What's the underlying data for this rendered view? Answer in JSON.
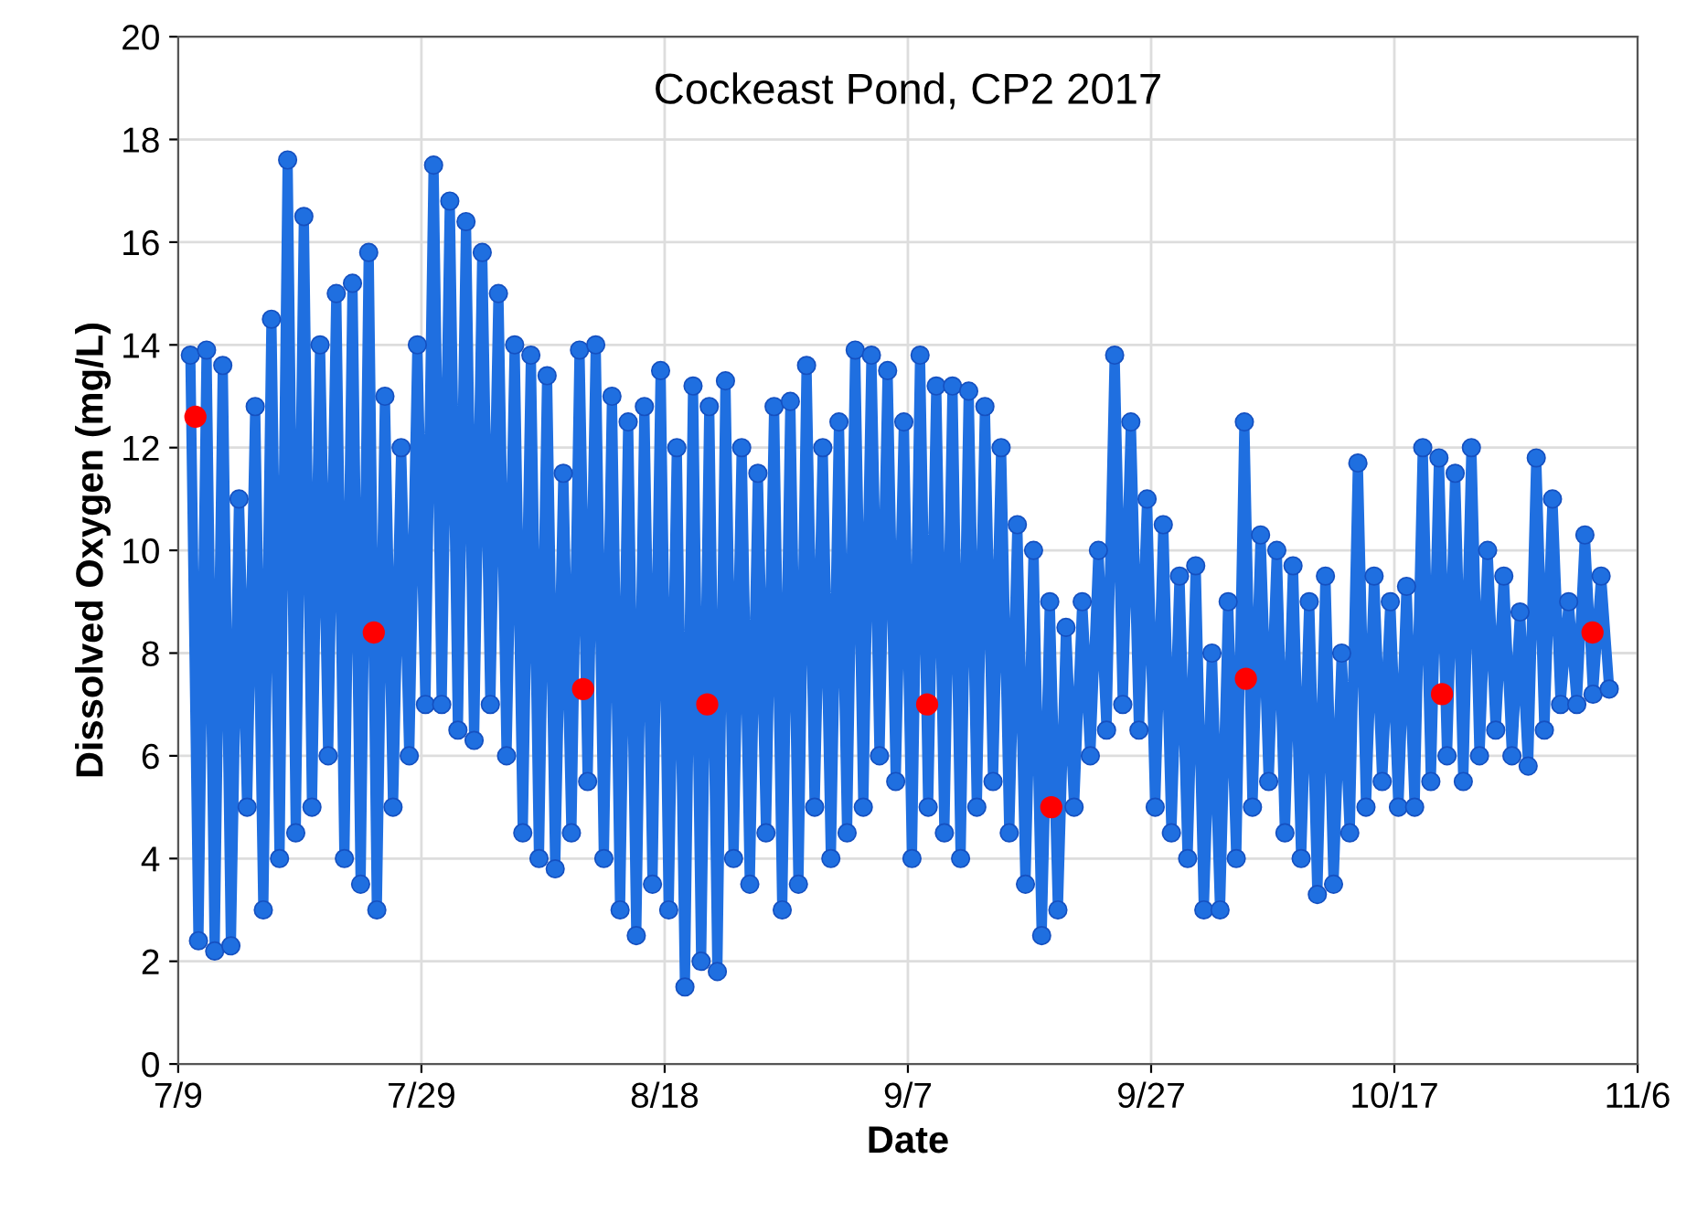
{
  "chart_data": {
    "type": "line",
    "title": "Cockeast Pond, CP2 2017",
    "xlabel": "Date",
    "ylabel": "Dissolved Oxygen (mg/L)",
    "xlim": [
      "2017-07-09",
      "2017-11-06"
    ],
    "xticks": [
      {
        "value": "2017-07-09",
        "label": "7/9"
      },
      {
        "value": "2017-07-29",
        "label": "7/29"
      },
      {
        "value": "2017-08-18",
        "label": "8/18"
      },
      {
        "value": "2017-09-07",
        "label": "9/7"
      },
      {
        "value": "2017-09-27",
        "label": "9/27"
      },
      {
        "value": "2017-10-17",
        "label": "10/17"
      },
      {
        "value": "2017-11-06",
        "label": "11/6"
      }
    ],
    "ylim": [
      0,
      20
    ],
    "yticks": [
      0,
      2,
      4,
      6,
      8,
      10,
      12,
      14,
      16,
      18,
      20
    ],
    "grid": true,
    "legend": false,
    "series": [
      {
        "type": "line",
        "marker": "circle",
        "color": "#1f6fe0",
        "x": [
          "2017-07-10T00:00",
          "2017-07-10T16:00",
          "2017-07-11T08:00",
          "2017-07-12T00:00",
          "2017-07-12T16:00",
          "2017-07-13T08:00",
          "2017-07-14T00:00",
          "2017-07-14T16:00",
          "2017-07-15T08:00",
          "2017-07-16T00:00",
          "2017-07-16T16:00",
          "2017-07-17T08:00",
          "2017-07-18T00:00",
          "2017-07-18T16:00",
          "2017-07-19T08:00",
          "2017-07-20T00:00",
          "2017-07-20T16:00",
          "2017-07-21T08:00",
          "2017-07-22T00:00",
          "2017-07-22T16:00",
          "2017-07-23T08:00",
          "2017-07-24T00:00",
          "2017-07-24T16:00",
          "2017-07-25T08:00",
          "2017-07-26T00:00",
          "2017-07-26T16:00",
          "2017-07-27T08:00",
          "2017-07-28T00:00",
          "2017-07-28T16:00",
          "2017-07-29T08:00",
          "2017-07-30T00:00",
          "2017-07-30T16:00",
          "2017-07-31T08:00",
          "2017-08-01T00:00",
          "2017-08-01T16:00",
          "2017-08-02T08:00",
          "2017-08-03T00:00",
          "2017-08-03T16:00",
          "2017-08-04T08:00",
          "2017-08-05T00:00",
          "2017-08-05T16:00",
          "2017-08-06T08:00",
          "2017-08-07T00:00",
          "2017-08-07T16:00",
          "2017-08-08T08:00",
          "2017-08-09T00:00",
          "2017-08-09T16:00",
          "2017-08-10T08:00",
          "2017-08-11T00:00",
          "2017-08-11T16:00",
          "2017-08-12T08:00",
          "2017-08-13T00:00",
          "2017-08-13T16:00",
          "2017-08-14T08:00",
          "2017-08-15T00:00",
          "2017-08-15T16:00",
          "2017-08-16T08:00",
          "2017-08-17T00:00",
          "2017-08-17T16:00",
          "2017-08-18T08:00",
          "2017-08-19T00:00",
          "2017-08-19T16:00",
          "2017-08-20T08:00",
          "2017-08-21T00:00",
          "2017-08-21T16:00",
          "2017-08-22T08:00",
          "2017-08-23T00:00",
          "2017-08-23T16:00",
          "2017-08-24T08:00",
          "2017-08-25T00:00",
          "2017-08-25T16:00",
          "2017-08-26T08:00",
          "2017-08-27T00:00",
          "2017-08-27T16:00",
          "2017-08-28T08:00",
          "2017-08-29T00:00",
          "2017-08-29T16:00",
          "2017-08-30T08:00",
          "2017-08-31T00:00",
          "2017-08-31T16:00",
          "2017-09-01T08:00",
          "2017-09-02T00:00",
          "2017-09-02T16:00",
          "2017-09-03T08:00",
          "2017-09-04T00:00",
          "2017-09-04T16:00",
          "2017-09-05T08:00",
          "2017-09-06T00:00",
          "2017-09-06T16:00",
          "2017-09-07T08:00",
          "2017-09-08T00:00",
          "2017-09-08T16:00",
          "2017-09-09T08:00",
          "2017-09-10T00:00",
          "2017-09-10T16:00",
          "2017-09-11T08:00",
          "2017-09-12T00:00",
          "2017-09-12T16:00",
          "2017-09-13T08:00",
          "2017-09-14T00:00",
          "2017-09-14T16:00",
          "2017-09-15T08:00",
          "2017-09-16T00:00",
          "2017-09-16T16:00",
          "2017-09-17T08:00",
          "2017-09-18T00:00",
          "2017-09-18T16:00",
          "2017-09-19T08:00",
          "2017-09-20T00:00",
          "2017-09-20T16:00",
          "2017-09-21T08:00",
          "2017-09-22T00:00",
          "2017-09-22T16:00",
          "2017-09-23T08:00",
          "2017-09-24T00:00",
          "2017-09-24T16:00",
          "2017-09-25T08:00",
          "2017-09-26T00:00",
          "2017-09-26T16:00",
          "2017-09-27T08:00",
          "2017-09-28T00:00",
          "2017-09-28T16:00",
          "2017-09-29T08:00",
          "2017-09-30T00:00",
          "2017-09-30T16:00",
          "2017-10-01T08:00",
          "2017-10-02T00:00",
          "2017-10-02T16:00",
          "2017-10-03T08:00",
          "2017-10-04T00:00",
          "2017-10-04T16:00",
          "2017-10-05T08:00",
          "2017-10-06T00:00",
          "2017-10-06T16:00",
          "2017-10-07T08:00",
          "2017-10-08T00:00",
          "2017-10-08T16:00",
          "2017-10-09T08:00",
          "2017-10-10T00:00",
          "2017-10-10T16:00",
          "2017-10-11T08:00",
          "2017-10-12T00:00",
          "2017-10-12T16:00",
          "2017-10-13T08:00",
          "2017-10-14T00:00",
          "2017-10-14T16:00",
          "2017-10-15T08:00",
          "2017-10-16T00:00",
          "2017-10-16T16:00",
          "2017-10-17T08:00",
          "2017-10-18T00:00",
          "2017-10-18T16:00",
          "2017-10-19T08:00",
          "2017-10-20T00:00",
          "2017-10-20T16:00",
          "2017-10-21T08:00",
          "2017-10-22T00:00",
          "2017-10-22T16:00",
          "2017-10-23T08:00",
          "2017-10-24T00:00",
          "2017-10-24T16:00",
          "2017-10-25T08:00",
          "2017-10-26T00:00",
          "2017-10-26T16:00",
          "2017-10-27T08:00",
          "2017-10-28T00:00",
          "2017-10-28T16:00",
          "2017-10-29T08:00",
          "2017-10-30T00:00",
          "2017-10-30T16:00",
          "2017-10-31T08:00",
          "2017-11-01T00:00",
          "2017-11-01T16:00",
          "2017-11-02T08:00",
          "2017-11-03T00:00",
          "2017-11-03T16:00"
        ],
        "values": [
          13.8,
          2.4,
          13.9,
          2.2,
          13.6,
          2.3,
          11,
          5,
          12.8,
          3,
          14.5,
          4,
          17.6,
          4.5,
          16.5,
          5,
          14,
          6,
          15,
          4,
          15.2,
          3.5,
          15.8,
          3,
          13,
          5,
          12,
          6,
          14,
          7,
          17.5,
          7,
          16.8,
          6.5,
          16.4,
          6.3,
          15.8,
          7,
          15,
          6,
          14,
          4.5,
          13.8,
          4,
          13.4,
          3.8,
          11.5,
          4.5,
          13.9,
          5.5,
          14,
          4,
          13,
          3,
          12.5,
          2.5,
          12.8,
          3.5,
          13.5,
          3,
          12,
          1.5,
          13.2,
          2,
          12.8,
          1.8,
          13.3,
          4,
          12,
          3.5,
          11.5,
          4.5,
          12.8,
          3,
          12.9,
          3.5,
          13.6,
          5,
          12,
          4,
          12.5,
          4.5,
          13.9,
          5,
          13.8,
          6,
          13.5,
          5.5,
          12.5,
          4,
          13.8,
          5,
          13.2,
          4.5,
          13.2,
          4,
          13.1,
          5,
          12.8,
          5.5,
          12,
          4.5,
          10.5,
          3.5,
          10,
          2.5,
          9,
          3,
          8.5,
          5,
          9,
          6,
          10,
          6.5,
          13.8,
          7,
          12.5,
          6.5,
          11,
          5,
          10.5,
          4.5,
          9.5,
          4,
          9.7,
          3,
          8,
          3,
          9,
          4,
          12.5,
          5,
          10.3,
          5.5,
          10,
          4.5,
          9.7,
          4,
          9,
          3.3,
          9.5,
          3.5,
          8,
          4.5,
          11.7,
          5,
          9.5,
          5.5,
          9,
          5,
          9.3,
          5,
          12,
          5.5,
          11.8,
          6,
          11.5,
          5.5,
          12,
          6,
          10,
          6.5,
          9.5,
          6,
          8.8,
          5.8,
          11.8,
          6.5,
          11,
          7,
          9,
          7,
          10.3,
          7.2,
          9.5,
          7.3
        ]
      },
      {
        "type": "scatter",
        "marker": "circle",
        "color": "#ff0000",
        "x": [
          "2017-07-10T10:00",
          "2017-07-25T02:00",
          "2017-08-11T07:00",
          "2017-08-21T12:00",
          "2017-09-08T14:00",
          "2017-09-18T19:00",
          "2017-10-04T19:00",
          "2017-10-20T22:00",
          "2017-11-02T07:00"
        ],
        "values": [
          12.6,
          8.4,
          7.3,
          7.0,
          7.0,
          5.0,
          7.5,
          7.2,
          8.4
        ]
      }
    ]
  }
}
